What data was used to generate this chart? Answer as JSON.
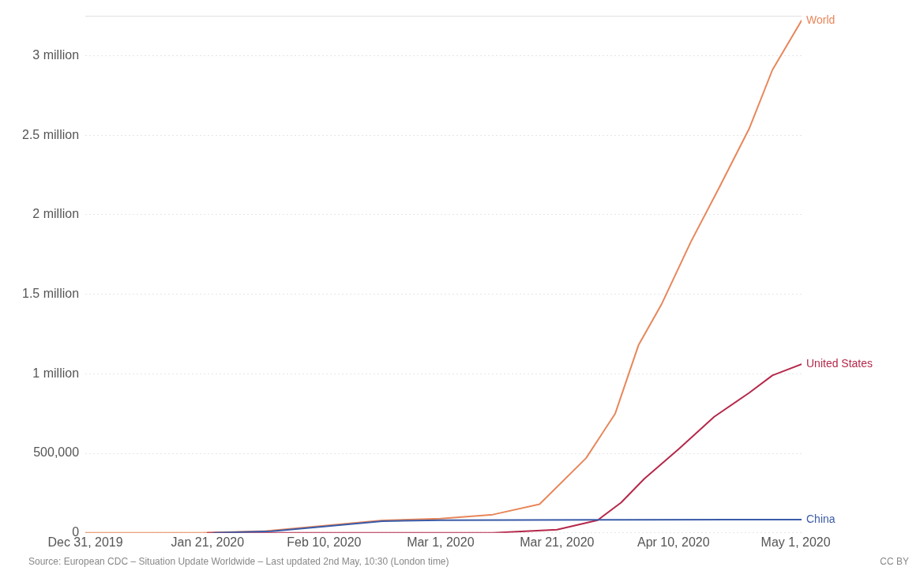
{
  "chart_data": {
    "type": "line",
    "xlim": [
      "2019-12-31",
      "2020-05-02"
    ],
    "xticks": [
      {
        "value": "2019-12-31",
        "label": "Dec 31, 2019"
      },
      {
        "value": "2020-01-21",
        "label": "Jan 21, 2020"
      },
      {
        "value": "2020-02-10",
        "label": "Feb 10, 2020"
      },
      {
        "value": "2020-03-01",
        "label": "Mar 1, 2020"
      },
      {
        "value": "2020-03-21",
        "label": "Mar 21, 2020"
      },
      {
        "value": "2020-04-10",
        "label": "Apr 10, 2020"
      },
      {
        "value": "2020-05-01",
        "label": "May 1, 2020"
      }
    ],
    "ylim": [
      0,
      3250000
    ],
    "yticks": [
      0,
      {
        "value": 500000,
        "label": "500,000"
      },
      {
        "value": 1000000,
        "label": "1 million"
      },
      {
        "value": 1500000,
        "label": "1.5 million"
      },
      {
        "value": 2000000,
        "label": "2 million"
      },
      {
        "value": 2500000,
        "label": "2.5 million"
      },
      {
        "value": 3000000,
        "label": "3 million"
      }
    ],
    "grid": "y",
    "legend": false,
    "marker": "none",
    "line_style": "solid",
    "series": [
      {
        "name": "World",
        "color": "#e8865a",
        "x": [
          "2019-12-31",
          "2020-01-20",
          "2020-01-31",
          "2020-02-10",
          "2020-02-20",
          "2020-03-01",
          "2020-03-10",
          "2020-03-18",
          "2020-03-26",
          "2020-03-31",
          "2020-04-04",
          "2020-04-08",
          "2020-04-13",
          "2020-04-18",
          "2020-04-23",
          "2020-04-27",
          "2020-05-02"
        ],
        "values": [
          0,
          0,
          12000,
          45000,
          79000,
          89000,
          115000,
          180000,
          470000,
          750000,
          1180000,
          1440000,
          1830000,
          2180000,
          2540000,
          2910000,
          3220000
        ]
      },
      {
        "name": "United States",
        "color": "#b5284a",
        "x": [
          "2020-01-21",
          "2020-03-10",
          "2020-03-21",
          "2020-03-28",
          "2020-04-01",
          "2020-04-05",
          "2020-04-11",
          "2020-04-17",
          "2020-04-23",
          "2020-04-27",
          "2020-05-02"
        ],
        "values": [
          0,
          0,
          20000,
          80000,
          190000,
          340000,
          530000,
          730000,
          880000,
          990000,
          1060000
        ]
      },
      {
        "name": "China",
        "color": "#3a5ba8",
        "x": [
          "2020-01-22",
          "2020-02-01",
          "2020-02-10",
          "2020-02-20",
          "2020-03-01",
          "2020-04-01",
          "2020-04-20",
          "2020-05-02"
        ],
        "values": [
          0,
          10000,
          40000,
          74000,
          80000,
          82000,
          84000,
          84000
        ]
      }
    ],
    "annotations": [
      "Source: European CDC – Situation Update Worldwide – Last updated 2nd May, 10:30 (London time)",
      "CC BY"
    ]
  }
}
